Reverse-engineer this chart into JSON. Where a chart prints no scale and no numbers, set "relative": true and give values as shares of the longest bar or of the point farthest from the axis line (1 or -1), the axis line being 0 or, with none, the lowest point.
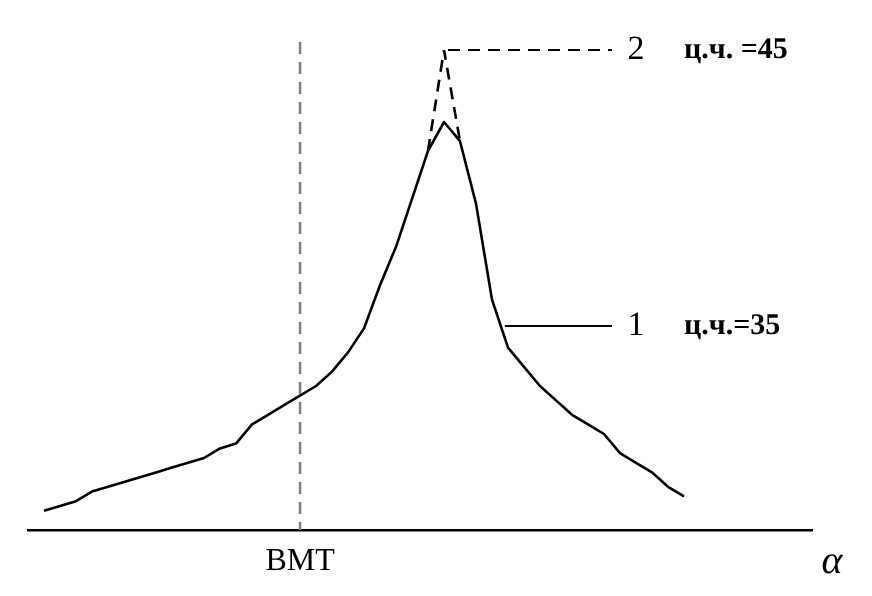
{
  "chart_data": {
    "type": "line",
    "relative": true,
    "xlabel": "α",
    "categories": [
      null,
      null,
      null,
      null,
      null,
      null,
      null,
      null,
      null,
      null,
      null,
      null,
      null,
      null,
      null,
      null,
      null,
      null,
      null,
      null,
      null,
      null,
      null,
      null,
      null,
      null,
      null,
      null,
      null,
      null,
      null,
      null,
      null,
      null,
      null,
      null,
      null,
      null,
      null,
      null,
      null,
      null,
      null,
      null,
      null,
      null,
      null,
      null,
      null,
      null
    ],
    "series": [
      {
        "name": "1",
        "color": "#000000",
        "line_style": "solid",
        "values": [
          null,
          0.04,
          0.05,
          0.06,
          0.08,
          0.09,
          0.1,
          0.11,
          0.12,
          0.13,
          0.14,
          0.15,
          0.17,
          0.18,
          0.22,
          0.24,
          0.26,
          0.28,
          0.3,
          0.33,
          0.37,
          0.42,
          0.51,
          0.59,
          0.69,
          0.79,
          0.85,
          0.81,
          0.68,
          0.48,
          0.38,
          0.34,
          0.3,
          0.27,
          0.24,
          0.22,
          0.2,
          0.16,
          0.14,
          0.12,
          0.09,
          0.07,
          null,
          null,
          null,
          null,
          null,
          null,
          null,
          null
        ]
      },
      {
        "name": "2",
        "color": "#000000",
        "line_style": "dashed",
        "values": [
          null,
          null,
          null,
          null,
          null,
          null,
          null,
          null,
          null,
          null,
          null,
          null,
          null,
          null,
          null,
          null,
          null,
          null,
          null,
          null,
          null,
          null,
          null,
          null,
          null,
          0.79,
          1,
          0.81,
          null,
          null,
          null,
          null,
          null,
          null,
          null,
          null,
          null,
          null,
          null,
          null,
          null,
          null,
          null,
          null,
          null,
          null,
          null,
          null,
          null,
          null
        ]
      }
    ],
    "annotations": [
      "ц.ч.=35",
      "ц.ч. =45",
      "ВМТ"
    ],
    "grid": false,
    "legend": "right",
    "marker": "none"
  }
}
